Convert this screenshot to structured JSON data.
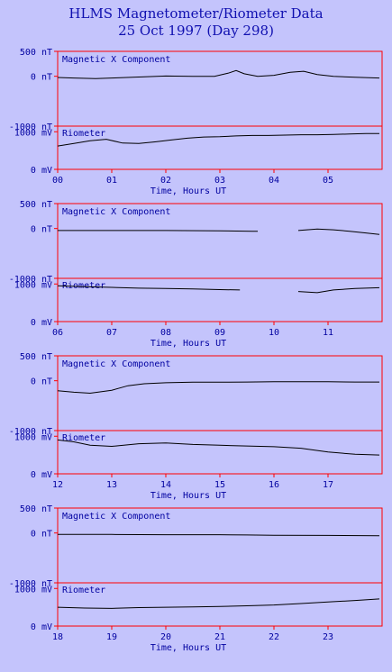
{
  "title": {
    "line1": "HLMS Magnetometer/Riometer Data",
    "line2": "25 Oct 1997 (Day 298)"
  },
  "colors": {
    "background": "#c4c4fc",
    "frame": "#ff0000",
    "text": "#0000a0",
    "trace": "#000000"
  },
  "chart_data": [
    {
      "type": "line",
      "hours": [
        "00",
        "01",
        "02",
        "03",
        "04",
        "05"
      ],
      "xlabel": "Time, Hours UT",
      "xlim": [
        0,
        6
      ],
      "magnetic": {
        "label": "Magnetic X Component",
        "unit": "nT",
        "ticks": [
          "500 nT",
          "0 nT",
          "-1000 nT"
        ],
        "ylim": [
          -1000,
          500
        ],
        "x": [
          0,
          0.3,
          0.7,
          1.0,
          1.5,
          2.0,
          2.5,
          2.9,
          3.15,
          3.3,
          3.45,
          3.7,
          4.0,
          4.3,
          4.55,
          4.8,
          5.1,
          5.5,
          5.95
        ],
        "y": [
          -25,
          -35,
          -45,
          -35,
          -15,
          5,
          0,
          0,
          60,
          115,
          50,
          0,
          20,
          80,
          100,
          35,
          0,
          -20,
          -35
        ]
      },
      "riometer": {
        "label": "Riometer",
        "unit": "mV",
        "ticks": [
          "1000 mV",
          "0 mV"
        ],
        "ylim": [
          0,
          1150
        ],
        "x": [
          0,
          0.3,
          0.6,
          0.9,
          1.2,
          1.5,
          1.8,
          2.1,
          2.4,
          2.7,
          3.0,
          3.3,
          3.6,
          3.9,
          4.2,
          4.5,
          4.8,
          5.1,
          5.4,
          5.7,
          5.95
        ],
        "y": [
          620,
          690,
          760,
          800,
          700,
          690,
          730,
          780,
          830,
          860,
          870,
          890,
          900,
          900,
          910,
          920,
          920,
          930,
          940,
          950,
          950
        ]
      }
    },
    {
      "type": "line",
      "hours": [
        "06",
        "07",
        "08",
        "09",
        "10",
        "11"
      ],
      "xlabel": "Time, Hours UT",
      "xlim": [
        6,
        12
      ],
      "magnetic": {
        "label": "Magnetic X Component",
        "unit": "nT",
        "ticks": [
          "500 nT",
          "0 nT",
          "-1000 nT"
        ],
        "ylim": [
          -1000,
          500
        ],
        "x": [
          6.0,
          7.0,
          8.0,
          9.0,
          9.6,
          9.7,
          null,
          10.45,
          10.8,
          11.1,
          11.4,
          11.7,
          11.95
        ],
        "y": [
          -40,
          -40,
          -40,
          -45,
          -55,
          -55,
          null,
          -40,
          -10,
          -25,
          -55,
          -90,
          -120
        ]
      },
      "riometer": {
        "label": "Riometer",
        "unit": "mV",
        "ticks": [
          "1000 mV",
          "0 mV"
        ],
        "ylim": [
          0,
          1150
        ],
        "x": [
          6.0,
          6.5,
          7.0,
          7.5,
          8.0,
          8.5,
          9.0,
          9.37,
          null,
          10.45,
          10.8,
          11.1,
          11.5,
          11.95
        ],
        "y": [
          950,
          930,
          910,
          890,
          880,
          870,
          850,
          840,
          null,
          800,
          770,
          840,
          880,
          900
        ]
      }
    },
    {
      "type": "line",
      "hours": [
        "12",
        "13",
        "14",
        "15",
        "16",
        "17"
      ],
      "xlabel": "Time, Hours UT",
      "xlim": [
        12,
        18
      ],
      "magnetic": {
        "label": "Magnetic X Component",
        "unit": "nT",
        "ticks": [
          "500 nT",
          "0 nT",
          "-1000 nT"
        ],
        "ylim": [
          -1000,
          500
        ],
        "x": [
          12.0,
          12.3,
          12.6,
          13.0,
          13.3,
          13.6,
          14.0,
          14.5,
          15.0,
          15.5,
          16.0,
          16.5,
          17.0,
          17.5,
          17.95
        ],
        "y": [
          -200,
          -230,
          -250,
          -190,
          -100,
          -60,
          -40,
          -30,
          -30,
          -25,
          -20,
          -20,
          -20,
          -25,
          -25
        ]
      },
      "riometer": {
        "label": "Riometer",
        "unit": "mV",
        "ticks": [
          "1000 mV",
          "0 mV"
        ],
        "ylim": [
          0,
          1150
        ],
        "x": [
          12.0,
          12.3,
          12.6,
          13.0,
          13.5,
          14.0,
          14.5,
          15.0,
          15.5,
          16.0,
          16.5,
          17.0,
          17.5,
          17.95
        ],
        "y": [
          900,
          850,
          760,
          730,
          800,
          820,
          780,
          760,
          740,
          720,
          680,
          580,
          520,
          500
        ]
      }
    },
    {
      "type": "line",
      "hours": [
        "18",
        "19",
        "20",
        "21",
        "22",
        "23"
      ],
      "xlabel": "Time, Hours UT",
      "xlim": [
        18,
        24
      ],
      "magnetic": {
        "label": "Magnetic X Component",
        "unit": "nT",
        "ticks": [
          "500 nT",
          "0 nT",
          "-1000 nT"
        ],
        "ylim": [
          -1000,
          500
        ],
        "x": [
          18.0,
          19.0,
          20.0,
          21.0,
          21.5,
          22.0,
          23.0,
          23.95
        ],
        "y": [
          -30,
          -30,
          -35,
          -35,
          -40,
          -45,
          -50,
          -55
        ]
      },
      "riometer": {
        "label": "Riometer",
        "unit": "mV",
        "ticks": [
          "1000 mV",
          "0 mV"
        ],
        "ylim": [
          0,
          1150
        ],
        "x": [
          18.0,
          18.5,
          19.0,
          19.5,
          20.0,
          20.5,
          21.0,
          21.5,
          22.0,
          22.5,
          23.0,
          23.5,
          23.95
        ],
        "y": [
          500,
          480,
          470,
          490,
          500,
          510,
          520,
          540,
          560,
          600,
          640,
          680,
          720
        ]
      }
    }
  ]
}
